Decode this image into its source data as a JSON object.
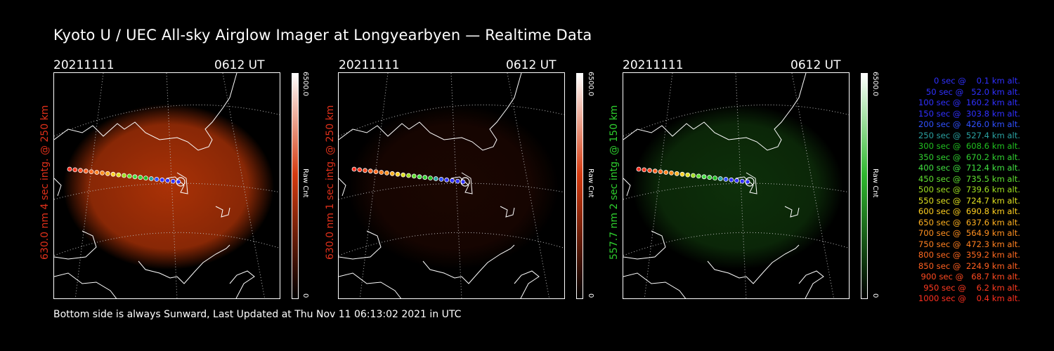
{
  "title": "Kyoto U / UEC All-sky Airglow Imager at Longyearbyen — Realtime Data",
  "panels": [
    {
      "date": "20211111",
      "time": "0612 UT",
      "label": "630.0 nm 4 sec intg. @ 250 km",
      "label_color": "#e0301a",
      "cbar_max": "6500.0",
      "cbar_min": "0",
      "cbar_unit": "Raw Cnt",
      "cbar_color": "#d43a10",
      "glow": "#c83a08",
      "glow_level": 0.85
    },
    {
      "date": "20211111",
      "time": "0612 UT",
      "label": "630.0 nm 1 sec intg. @ 250 km",
      "label_color": "#e0301a",
      "cbar_max": "6500.0",
      "cbar_min": "0",
      "cbar_unit": "Raw Cnt",
      "cbar_color": "#d43a10",
      "glow": "#5a1404",
      "glow_level": 0.3
    },
    {
      "date": "20211111",
      "time": "0612 UT",
      "label": "557.7 nm 2 sec intg. @ 150 km",
      "label_color": "#2ecf2e",
      "cbar_max": "6500.0",
      "cbar_min": "0",
      "cbar_unit": "Raw Cnt",
      "cbar_color": "#2fb82f",
      "glow": "#1e6a16",
      "glow_level": 0.45
    }
  ],
  "footer": "Bottom side is always Sunward, Last Updated at Thu Nov 11 06:13:02 2021 in UTC",
  "legend": [
    {
      "text": "   0 sec @    0.1 km alt.",
      "color": "#3030ff"
    },
    {
      "text": "  50 sec @   52.0 km alt.",
      "color": "#3030ff"
    },
    {
      "text": " 100 sec @  160.2 km alt.",
      "color": "#3030ff"
    },
    {
      "text": " 150 sec @  303.8 km alt.",
      "color": "#3030ff"
    },
    {
      "text": " 200 sec @  426.0 km alt.",
      "color": "#3050ff"
    },
    {
      "text": " 250 sec @  527.4 km alt.",
      "color": "#2aa0a0"
    },
    {
      "text": " 300 sec @  608.6 km alt.",
      "color": "#20c020"
    },
    {
      "text": " 350 sec @  670.2 km alt.",
      "color": "#30d030"
    },
    {
      "text": " 400 sec @  712.4 km alt.",
      "color": "#40e040"
    },
    {
      "text": " 450 sec @  735.5 km alt.",
      "color": "#60e030"
    },
    {
      "text": " 500 sec @  739.6 km alt.",
      "color": "#a0e020"
    },
    {
      "text": " 550 sec @  724.7 km alt.",
      "color": "#e0e020"
    },
    {
      "text": " 600 sec @  690.8 km alt.",
      "color": "#ffd020"
    },
    {
      "text": " 650 sec @  637.6 km alt.",
      "color": "#ffb020"
    },
    {
      "text": " 700 sec @  564.9 km alt.",
      "color": "#ff9020"
    },
    {
      "text": " 750 sec @  472.3 km alt.",
      "color": "#ff8020"
    },
    {
      "text": " 800 sec @  359.2 km alt.",
      "color": "#ff6a20"
    },
    {
      "text": " 850 sec @  224.9 km alt.",
      "color": "#ff6020"
    },
    {
      "text": " 900 sec @   68.7 km alt.",
      "color": "#ff4a20"
    },
    {
      "text": " 950 sec @    6.2 km alt.",
      "color": "#ff3a20"
    },
    {
      "text": "1000 sec @    0.4 km alt.",
      "color": "#ff3020"
    }
  ]
}
